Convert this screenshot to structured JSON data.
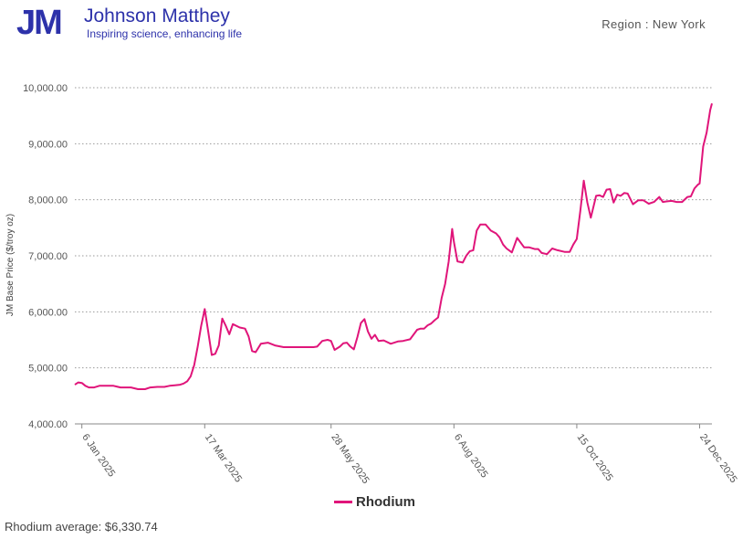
{
  "header": {
    "logo_mark": "JM",
    "company_name": "Johnson Matthey",
    "tagline": "Inspiring science, enhancing life",
    "region_label": "Region : New York"
  },
  "colors": {
    "brand": "#2d32aa",
    "series": "#e0157a",
    "grid": "#999999"
  },
  "footer": {
    "average_label": "Rhodium average:",
    "average_value": "$6,330.74"
  },
  "chart_data": {
    "type": "line",
    "title": "",
    "xlabel": "",
    "ylabel": "JM Base Price ($/troy oz)",
    "ylim": [
      4000,
      10000
    ],
    "yticks": [
      4000,
      5000,
      6000,
      7000,
      8000,
      9000,
      10000
    ],
    "ytick_labels": [
      "4,000.00",
      "5,000.00",
      "6,000.00",
      "7,000.00",
      "8,000.00",
      "9,000.00",
      "10,000.00"
    ],
    "xlim": [
      "2025-01-02",
      "2025-12-31"
    ],
    "xticks": [
      "2025-01-06",
      "2025-03-17",
      "2025-05-28",
      "2025-08-06",
      "2025-10-15",
      "2025-12-24"
    ],
    "xtick_labels": [
      "6 Jan 2025",
      "17 Mar 2025",
      "28 May 2025",
      "6 Aug 2025",
      "15 Oct 2025",
      "24 Dec 2025"
    ],
    "grid": "horizontal dotted",
    "legend": "bottom-center",
    "series": [
      {
        "name": "Rhodium",
        "color": "#e0157a",
        "x": [
          "2025-01-02",
          "2025-01-04",
          "2025-01-06",
          "2025-01-08",
          "2025-01-10",
          "2025-01-13",
          "2025-01-16",
          "2025-01-20",
          "2025-01-24",
          "2025-01-28",
          "2025-02-03",
          "2025-02-07",
          "2025-02-11",
          "2025-02-14",
          "2025-02-18",
          "2025-02-22",
          "2025-02-25",
          "2025-02-28",
          "2025-03-03",
          "2025-03-05",
          "2025-03-07",
          "2025-03-09",
          "2025-03-11",
          "2025-03-13",
          "2025-03-15",
          "2025-03-17",
          "2025-03-19",
          "2025-03-21",
          "2025-03-23",
          "2025-03-25",
          "2025-03-27",
          "2025-03-29",
          "2025-03-31",
          "2025-04-02",
          "2025-04-06",
          "2025-04-09",
          "2025-04-11",
          "2025-04-13",
          "2025-04-15",
          "2025-04-18",
          "2025-04-22",
          "2025-04-26",
          "2025-05-01",
          "2025-05-06",
          "2025-05-12",
          "2025-05-18",
          "2025-05-20",
          "2025-05-23",
          "2025-05-26",
          "2025-05-28",
          "2025-05-30",
          "2025-06-02",
          "2025-06-04",
          "2025-06-06",
          "2025-06-08",
          "2025-06-10",
          "2025-06-12",
          "2025-06-14",
          "2025-06-16",
          "2025-06-18",
          "2025-06-20",
          "2025-06-22",
          "2025-06-24",
          "2025-06-27",
          "2025-07-01",
          "2025-07-05",
          "2025-07-08",
          "2025-07-12",
          "2025-07-16",
          "2025-07-18",
          "2025-07-20",
          "2025-07-22",
          "2025-07-24",
          "2025-07-26",
          "2025-07-28",
          "2025-07-30",
          "2025-08-01",
          "2025-08-03",
          "2025-08-05",
          "2025-08-06",
          "2025-08-08",
          "2025-08-11",
          "2025-08-13",
          "2025-08-15",
          "2025-08-17",
          "2025-08-19",
          "2025-08-21",
          "2025-08-24",
          "2025-08-27",
          "2025-08-30",
          "2025-09-01",
          "2025-09-03",
          "2025-09-05",
          "2025-09-08",
          "2025-09-11",
          "2025-09-15",
          "2025-09-18",
          "2025-09-21",
          "2025-09-23",
          "2025-09-25",
          "2025-09-28",
          "2025-10-01",
          "2025-10-04",
          "2025-10-08",
          "2025-10-11",
          "2025-10-13",
          "2025-10-15",
          "2025-10-17",
          "2025-10-19",
          "2025-10-21",
          "2025-10-23",
          "2025-10-26",
          "2025-10-28",
          "2025-10-30",
          "2025-11-01",
          "2025-11-03",
          "2025-11-05",
          "2025-11-07",
          "2025-11-09",
          "2025-11-11",
          "2025-11-13",
          "2025-11-16",
          "2025-11-19",
          "2025-11-22",
          "2025-11-25",
          "2025-11-28",
          "2025-12-01",
          "2025-12-03",
          "2025-12-05",
          "2025-12-08",
          "2025-12-11",
          "2025-12-14",
          "2025-12-17",
          "2025-12-19",
          "2025-12-21",
          "2025-12-23",
          "2025-12-24",
          "2025-12-26",
          "2025-12-28",
          "2025-12-30",
          "2025-12-31"
        ],
        "values": [
          4700,
          4740,
          4730,
          4680,
          4650,
          4650,
          4680,
          4680,
          4680,
          4650,
          4650,
          4620,
          4620,
          4650,
          4660,
          4660,
          4680,
          4690,
          4700,
          4720,
          4760,
          4850,
          5050,
          5380,
          5750,
          6050,
          5650,
          5230,
          5250,
          5400,
          5880,
          5750,
          5600,
          5780,
          5720,
          5700,
          5560,
          5300,
          5280,
          5430,
          5450,
          5400,
          5370,
          5370,
          5370,
          5370,
          5380,
          5480,
          5500,
          5480,
          5320,
          5380,
          5440,
          5450,
          5380,
          5330,
          5550,
          5800,
          5870,
          5650,
          5520,
          5590,
          5480,
          5490,
          5430,
          5470,
          5480,
          5510,
          5680,
          5700,
          5700,
          5760,
          5790,
          5850,
          5900,
          6250,
          6500,
          6900,
          7480,
          7250,
          6900,
          6880,
          7000,
          7080,
          7100,
          7450,
          7560,
          7560,
          7450,
          7400,
          7330,
          7200,
          7130,
          7060,
          7320,
          7150,
          7150,
          7120,
          7120,
          7050,
          7030,
          7130,
          7100,
          7070,
          7070,
          7200,
          7300,
          7800,
          8340,
          7950,
          7680,
          8070,
          8080,
          8050,
          8180,
          8190,
          7950,
          8090,
          8070,
          8120,
          8110,
          7920,
          7990,
          7990,
          7930,
          7960,
          8050,
          7960,
          7970,
          7980,
          7960,
          7960,
          8050,
          8060,
          8200,
          8270,
          8290,
          8950,
          9200,
          9600,
          9720
        ]
      }
    ]
  }
}
